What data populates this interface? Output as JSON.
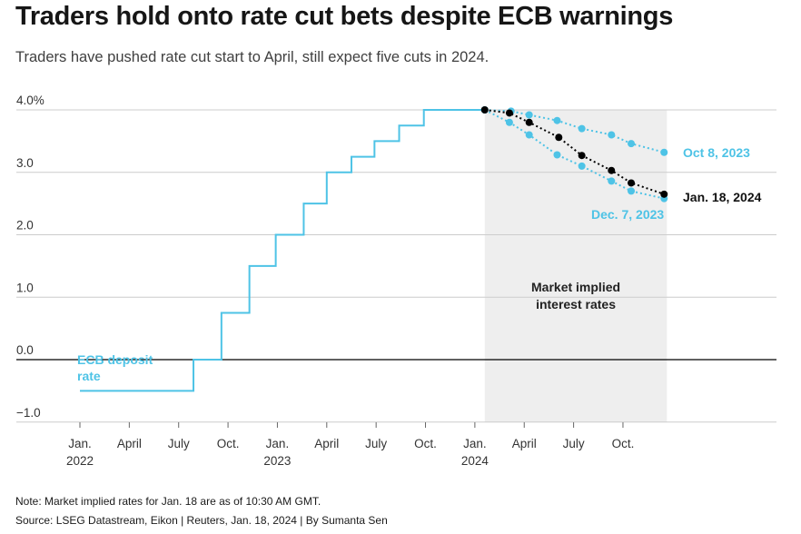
{
  "title": "Traders hold onto rate cut bets despite ECB warnings",
  "subtitle": "Traders have pushed rate cut start to April, still expect five cuts in 2024.",
  "note": "Note: Market implied rates for Jan. 18 are as of 10:30 AM GMT.",
  "source": "Source: LSEG Datastream, Eikon | Reuters, Jan. 18, 2024 | By Sumanta Sen",
  "colors": {
    "ecb": "#4ec3e6",
    "jan18": "#000000",
    "shade": "#eeeeee",
    "grid": "#cccccc",
    "zero": "#000000"
  },
  "chart_data": {
    "type": "line",
    "y_axis": {
      "range": [
        -1.0,
        4.0
      ],
      "ticks": [
        4.0,
        3.0,
        2.0,
        1.0,
        0.0,
        -1.0
      ],
      "tick_labels": [
        "4.0%",
        "3.0",
        "2.0",
        "1.0",
        "0.0",
        "−1.0"
      ]
    },
    "x_axis": {
      "range_months": [
        -1,
        23
      ],
      "ticks": [
        {
          "m": 0,
          "line1": "Jan.",
          "line2": "2022"
        },
        {
          "m": 3,
          "line1": "April",
          "line2": ""
        },
        {
          "m": 6,
          "line1": "July",
          "line2": ""
        },
        {
          "m": 9,
          "line1": "Oct.",
          "line2": ""
        },
        {
          "m": 12,
          "line1": "Jan.",
          "line2": "2023"
        },
        {
          "m": 15,
          "line1": "April",
          "line2": ""
        },
        {
          "m": 18,
          "line1": "July",
          "line2": ""
        },
        {
          "m": 21,
          "line1": "Oct.",
          "line2": ""
        },
        {
          "m": 24,
          "line1": "Jan.",
          "line2": "2024"
        },
        {
          "m": 27,
          "line1": "April",
          "line2": ""
        },
        {
          "m": 30,
          "line1": "July",
          "line2": ""
        },
        {
          "m": 33,
          "line1": "Oct.",
          "line2": ""
        }
      ]
    },
    "shaded_region": {
      "from_month": 24.6,
      "to_month": 36,
      "label_line1": "Market implied",
      "label_line2": "interest rates"
    },
    "ecb_deposit_rate": {
      "name": "ECB deposit rate",
      "label_line1": "ECB deposit",
      "label_line2": "rate",
      "steps": [
        {
          "m": 0,
          "v": -0.5
        },
        {
          "m": 6.9,
          "v": 0.0
        },
        {
          "m": 8.6,
          "v": 0.75
        },
        {
          "m": 10.3,
          "v": 1.5
        },
        {
          "m": 11.9,
          "v": 2.0
        },
        {
          "m": 13.6,
          "v": 2.5
        },
        {
          "m": 15.0,
          "v": 3.0
        },
        {
          "m": 16.5,
          "v": 3.25
        },
        {
          "m": 17.9,
          "v": 3.5
        },
        {
          "m": 19.4,
          "v": 3.75
        },
        {
          "m": 20.9,
          "v": 4.0
        }
      ],
      "end_month": 24.6
    },
    "series": [
      {
        "name": "Oct 8, 2023",
        "label": "Oct 8, 2023",
        "color": "#4ec3e6",
        "dotted": true,
        "points": [
          {
            "m": 24.6,
            "v": 4.0
          },
          {
            "m": 26.2,
            "v": 3.98
          },
          {
            "m": 27.3,
            "v": 3.92
          },
          {
            "m": 29.0,
            "v": 3.83
          },
          {
            "m": 30.5,
            "v": 3.7
          },
          {
            "m": 32.3,
            "v": 3.6
          },
          {
            "m": 33.5,
            "v": 3.46
          },
          {
            "m": 35.5,
            "v": 3.32
          }
        ]
      },
      {
        "name": "Dec. 7, 2023",
        "label": "Dec. 7, 2023",
        "color": "#4ec3e6",
        "dotted": true,
        "points": [
          {
            "m": 24.6,
            "v": 4.0
          },
          {
            "m": 26.1,
            "v": 3.8
          },
          {
            "m": 27.3,
            "v": 3.6
          },
          {
            "m": 29.0,
            "v": 3.28
          },
          {
            "m": 30.5,
            "v": 3.1
          },
          {
            "m": 32.3,
            "v": 2.86
          },
          {
            "m": 33.5,
            "v": 2.7
          },
          {
            "m": 35.5,
            "v": 2.58
          }
        ]
      },
      {
        "name": "Jan. 18, 2024",
        "label": "Jan. 18, 2024",
        "color": "#000000",
        "dotted": true,
        "points": [
          {
            "m": 24.6,
            "v": 4.0
          },
          {
            "m": 26.1,
            "v": 3.95
          },
          {
            "m": 27.3,
            "v": 3.8
          },
          {
            "m": 29.1,
            "v": 3.56
          },
          {
            "m": 30.5,
            "v": 3.27
          },
          {
            "m": 32.3,
            "v": 3.03
          },
          {
            "m": 33.5,
            "v": 2.83
          },
          {
            "m": 35.5,
            "v": 2.65
          }
        ]
      }
    ]
  }
}
